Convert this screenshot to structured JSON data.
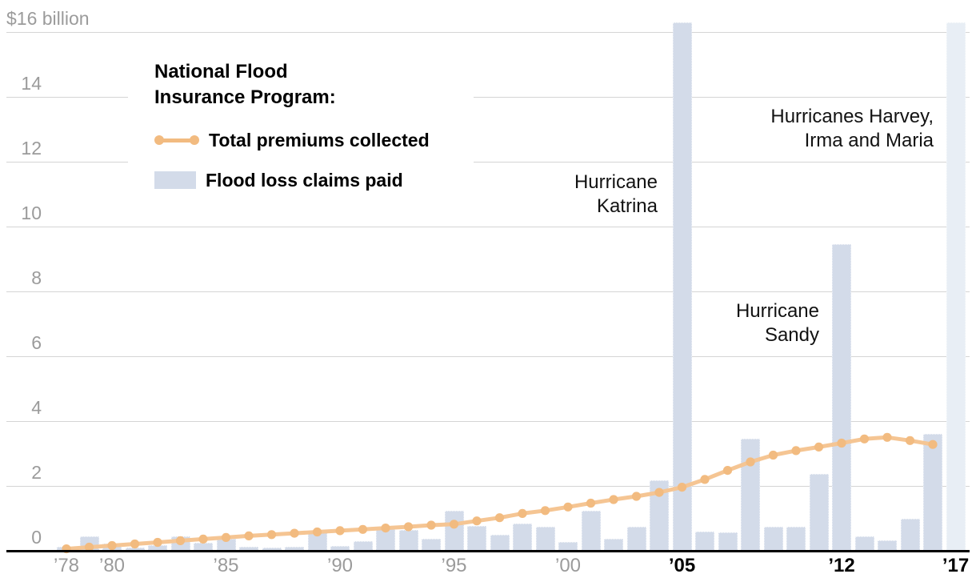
{
  "colors": {
    "bar": "#d3dbe9",
    "bar_light": "#e8eef5",
    "line": "#f5c593",
    "dot": "#f2bb80",
    "gridline": "#d5d5d5",
    "axis": "#000000",
    "tick_gray": "#9b9b9b",
    "tick_emphasis": "#000000",
    "annotation_text": "#121212"
  },
  "legend": {
    "title_line1": "National Flood",
    "title_line2": "Insurance Program:",
    "items": [
      {
        "label": "Total premiums collected",
        "swatch": "line-with-dots",
        "color": "#f2bb80"
      },
      {
        "label": "Flood loss claims paid",
        "swatch": "bar",
        "color": "#d3dbe9"
      }
    ]
  },
  "annotations": [
    {
      "id": "katrina",
      "lines": [
        "Hurricane",
        "Katrina"
      ],
      "target_year": 2005
    },
    {
      "id": "harvey-irma-maria",
      "lines": [
        "Hurricanes Harvey,",
        "Irma and Maria"
      ],
      "target_year": 2017
    },
    {
      "id": "sandy",
      "lines": [
        "Hurricane",
        "Sandy"
      ],
      "target_year": 2012
    }
  ],
  "chart_data": {
    "type": "bar",
    "subtype": "bar-and-line combo, annual time series",
    "title": "National Flood Insurance Program:",
    "unit": "$ billion",
    "ylim": [
      0,
      16
    ],
    "grid": true,
    "legend_position": "top-left",
    "years": [
      1978,
      1979,
      1980,
      1981,
      1982,
      1983,
      1984,
      1985,
      1986,
      1987,
      1988,
      1989,
      1990,
      1991,
      1992,
      1993,
      1994,
      1995,
      1996,
      1997,
      1998,
      1999,
      2000,
      2001,
      2002,
      2003,
      2004,
      2005,
      2006,
      2007,
      2008,
      2009,
      2010,
      2011,
      2012,
      2013,
      2014,
      2015,
      2016,
      2017
    ],
    "series": [
      {
        "name": "Flood loss claims paid",
        "type": "bar",
        "color": "#d3dbe9",
        "values": [
          0.12,
          0.45,
          0.21,
          0.1,
          0.17,
          0.44,
          0.24,
          0.37,
          0.12,
          0.09,
          0.12,
          0.6,
          0.16,
          0.3,
          0.7,
          0.65,
          0.37,
          1.23,
          0.77,
          0.49,
          0.84,
          0.74,
          0.27,
          1.23,
          0.37,
          0.74,
          2.17,
          16.3,
          0.6,
          0.57,
          3.45,
          0.74,
          0.74,
          2.37,
          9.45,
          0.44,
          0.32,
          0.98,
          3.6,
          16.3
        ],
        "offscale_clipped_years": [
          2005,
          2017
        ],
        "light_shaded_year": 2017,
        "light_color": "#e8eef5"
      },
      {
        "name": "Total premiums collected",
        "type": "line",
        "color": "#f5c593",
        "dot_color": "#f2bb80",
        "first_year": 1978,
        "last_year": 2016,
        "values": [
          0.06,
          0.11,
          0.16,
          0.21,
          0.26,
          0.31,
          0.36,
          0.41,
          0.46,
          0.5,
          0.54,
          0.58,
          0.62,
          0.66,
          0.7,
          0.74,
          0.79,
          0.82,
          0.92,
          1.02,
          1.15,
          1.24,
          1.35,
          1.47,
          1.58,
          1.68,
          1.8,
          1.96,
          2.2,
          2.48,
          2.74,
          2.95,
          3.09,
          3.2,
          3.32,
          3.45,
          3.5,
          3.4,
          3.28
        ]
      }
    ],
    "y_ticks": [
      {
        "value": 16,
        "label": "$16 billion"
      },
      {
        "value": 14,
        "label": "14"
      },
      {
        "value": 12,
        "label": "12"
      },
      {
        "value": 10,
        "label": "10"
      },
      {
        "value": 8,
        "label": "8"
      },
      {
        "value": 6,
        "label": "6"
      },
      {
        "value": 4,
        "label": "4"
      },
      {
        "value": 2,
        "label": "2"
      },
      {
        "value": 0,
        "label": "0"
      }
    ],
    "x_ticks": [
      {
        "year": 1978,
        "label": "’78",
        "emphasis": false
      },
      {
        "year": 1980,
        "label": "’80",
        "emphasis": false
      },
      {
        "year": 1985,
        "label": "’85",
        "emphasis": false
      },
      {
        "year": 1990,
        "label": "’90",
        "emphasis": false
      },
      {
        "year": 1995,
        "label": "’95",
        "emphasis": false
      },
      {
        "year": 2000,
        "label": "’00",
        "emphasis": false
      },
      {
        "year": 2005,
        "label": "’05",
        "emphasis": true
      },
      {
        "year": 2012,
        "label": "’12",
        "emphasis": true
      },
      {
        "year": 2017,
        "label": "’17",
        "emphasis": true
      }
    ]
  }
}
